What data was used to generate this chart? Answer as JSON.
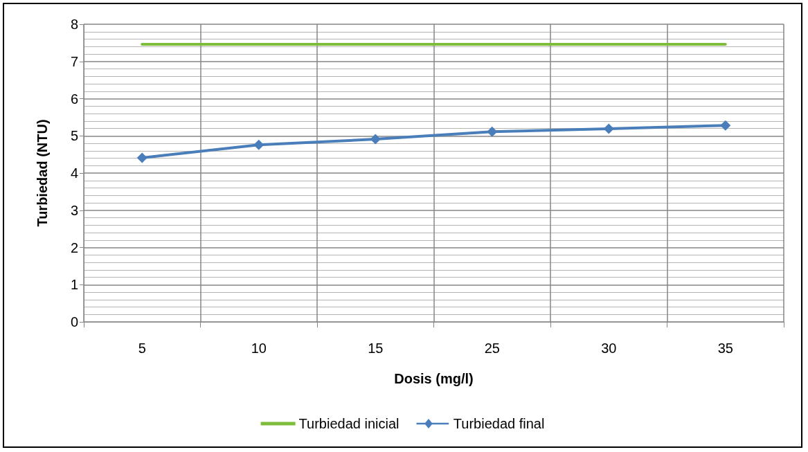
{
  "chart_data": {
    "type": "line",
    "xlabel": "Dosis (mg/l)",
    "ylabel": "Turbiedad (NTU)",
    "categories": [
      "5",
      "10",
      "15",
      "25",
      "30",
      "35"
    ],
    "series": [
      {
        "name": "Turbiedad inicial",
        "color": "#7dbd3a",
        "marker": "none",
        "values": [
          7.46,
          7.46,
          7.46,
          7.46,
          7.46,
          7.46
        ]
      },
      {
        "name": "Turbiedad final",
        "color": "#4a7ebb",
        "marker": "diamond",
        "values": [
          4.41,
          4.76,
          4.91,
          5.11,
          5.19,
          5.28
        ]
      }
    ],
    "ylim": [
      0,
      8
    ],
    "yticks": [
      0,
      1,
      2,
      3,
      4,
      5,
      6,
      7,
      8
    ],
    "grid": true,
    "legend": "bottom",
    "line_style": "solid"
  }
}
